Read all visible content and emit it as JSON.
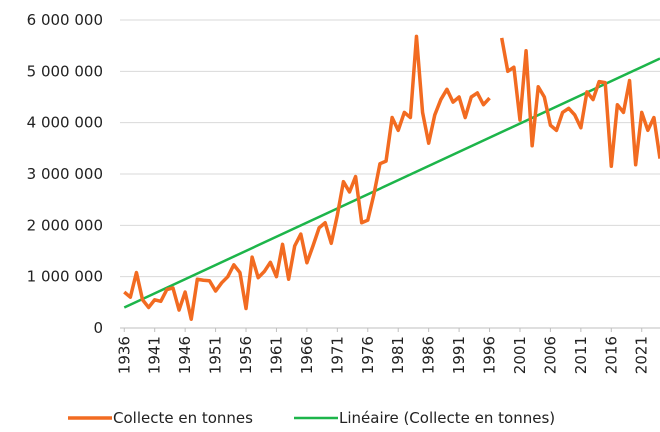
{
  "chart_data": {
    "type": "line",
    "x": [
      1936,
      1937,
      1938,
      1939,
      1940,
      1941,
      1942,
      1943,
      1944,
      1945,
      1946,
      1947,
      1948,
      1949,
      1950,
      1951,
      1952,
      1953,
      1954,
      1955,
      1956,
      1957,
      1958,
      1959,
      1960,
      1961,
      1962,
      1963,
      1964,
      1965,
      1966,
      1967,
      1968,
      1969,
      1970,
      1971,
      1972,
      1973,
      1974,
      1975,
      1976,
      1977,
      1978,
      1979,
      1980,
      1981,
      1982,
      1983,
      1984,
      1985,
      1986,
      1987,
      1988,
      1989,
      1990,
      1991,
      1992,
      1993,
      1994,
      1995,
      1996,
      1997,
      1998,
      1999,
      2000,
      2001,
      2002,
      2003,
      2004,
      2005,
      2006,
      2007,
      2008,
      2009,
      2010,
      2011,
      2012,
      2013,
      2014,
      2015,
      2016,
      2017,
      2018,
      2019,
      2020,
      2021,
      2022,
      2023,
      2024
    ],
    "series": [
      {
        "name": "Collecte en tonnes",
        "color": "#f26b21",
        "values": [
          700000,
          600000,
          1080000,
          550000,
          400000,
          550000,
          520000,
          750000,
          780000,
          350000,
          700000,
          170000,
          950000,
          930000,
          920000,
          720000,
          880000,
          1000000,
          1230000,
          1080000,
          380000,
          1380000,
          980000,
          1100000,
          1280000,
          1000000,
          1630000,
          950000,
          1600000,
          1830000,
          1270000,
          1600000,
          1950000,
          2050000,
          1650000,
          2200000,
          2850000,
          2650000,
          2950000,
          2050000,
          2100000,
          2600000,
          3200000,
          3250000,
          4100000,
          3850000,
          4200000,
          4100000,
          5680000,
          4200000,
          3600000,
          4150000,
          4450000,
          4650000,
          4400000,
          4500000,
          4100000,
          4500000,
          4580000,
          4350000,
          4480000,
          null,
          5650000,
          5000000,
          5080000,
          4050000,
          5400000,
          3550000,
          4700000,
          4500000,
          3950000,
          3850000,
          4200000,
          4280000,
          4150000,
          3900000,
          4600000,
          4450000,
          4800000,
          4780000,
          3150000,
          4350000,
          4200000,
          4820000,
          3180000,
          4200000,
          3850000,
          4100000,
          3300000
        ]
      },
      {
        "name": "Linéaire (Collecte en tonnes)",
        "color": "#1db54a",
        "x": [
          1936,
          2024
        ],
        "values": [
          400000,
          5250000
        ]
      }
    ],
    "xlim": [
      1935.3,
      2024
    ],
    "xticks": [
      1936,
      1941,
      1946,
      1951,
      1956,
      1961,
      1966,
      1971,
      1976,
      1981,
      1986,
      1991,
      1996,
      2001,
      2006,
      2011,
      2016,
      2021
    ],
    "ylim": [
      0,
      6000000
    ],
    "yticks": [
      0,
      {
        "value": 1000000,
        "label": "1 000 000"
      },
      {
        "value": 2000000,
        "label": "2 000 000"
      },
      {
        "value": 3000000,
        "label": "3 000 000"
      },
      {
        "value": 4000000,
        "label": "4 000 000"
      },
      {
        "value": 5000000,
        "label": "5 000 000"
      },
      {
        "value": 6000000,
        "label": "6 000 000"
      }
    ],
    "grid": true
  }
}
